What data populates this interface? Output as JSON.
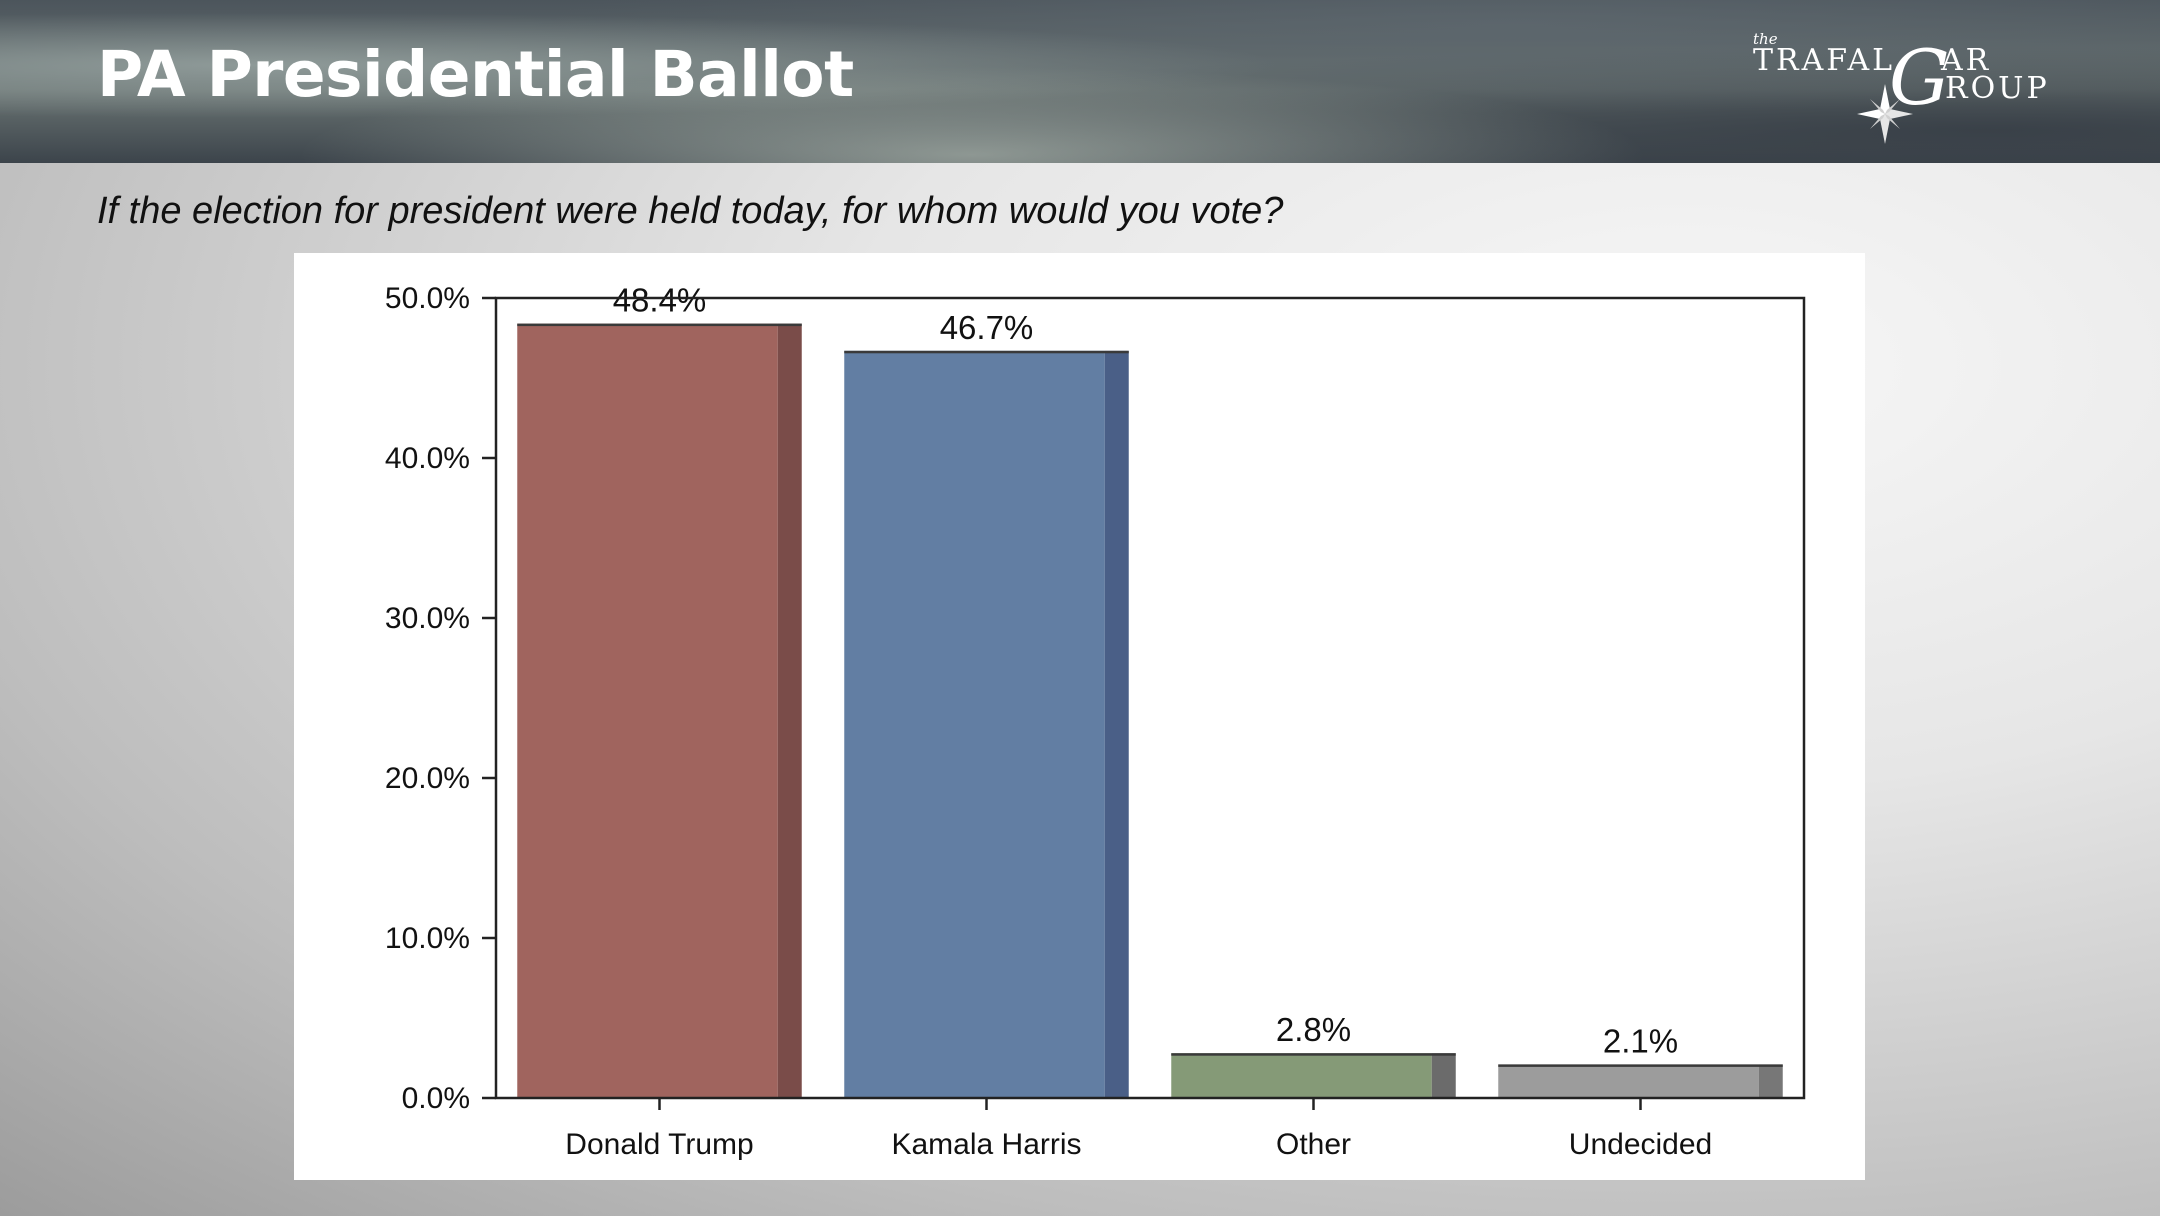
{
  "header": {
    "title": "PA Presidential Ballot",
    "logo": {
      "the": "the",
      "word1": "TRAFAL",
      "g_letter": "G",
      "word1_tail": "AR",
      "word2": "ROUP"
    }
  },
  "question": "If the election for president were held today, for whom would you vote?",
  "chart_data": {
    "type": "bar",
    "categories": [
      "Donald Trump",
      "Kamala Harris",
      "Other",
      "Undecided"
    ],
    "values": [
      48.4,
      46.7,
      2.8,
      2.1
    ],
    "data_labels": [
      "48.4%",
      "46.7%",
      "2.8%",
      "2.1%"
    ],
    "colors": [
      "#a0645e",
      "#627ea3",
      "#859a77",
      "#9c9c9c"
    ],
    "shade_colors": [
      "#7a4c49",
      "#4a5f87",
      "#6b6b6b",
      "#777777"
    ],
    "ylim": [
      0,
      50
    ],
    "yticks": [
      0,
      10,
      20,
      30,
      40,
      50
    ],
    "ytick_labels": [
      "0.0%",
      "10.0%",
      "20.0%",
      "30.0%",
      "40.0%",
      "50.0%"
    ],
    "title": "",
    "xlabel": "",
    "ylabel": "",
    "grid": false,
    "legend": "none"
  }
}
